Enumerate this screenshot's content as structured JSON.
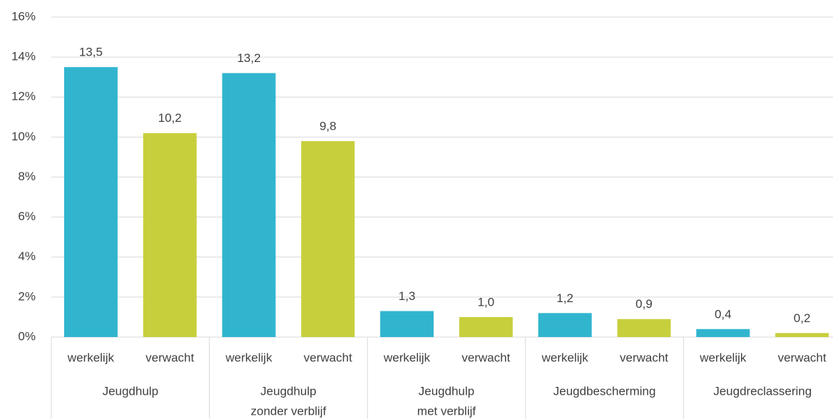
{
  "chart_data": {
    "type": "bar",
    "categories": [
      "werkelijk",
      "verwacht",
      "werkelijk",
      "verwacht",
      "werkelijk",
      "verwacht",
      "werkelijk",
      "verwacht",
      "werkelijk",
      "verwacht"
    ],
    "groups": [
      [
        "Jeugdhulp"
      ],
      [
        "Jeugdhulp",
        "zonder verblijf"
      ],
      [
        "Jeugdhulp",
        "met verblijf"
      ],
      [
        "Jeugdbescherming"
      ],
      [
        "Jeugdreclassering"
      ]
    ],
    "values": [
      13.5,
      10.2,
      13.2,
      9.8,
      1.3,
      1.0,
      1.2,
      0.9,
      0.4,
      0.2
    ],
    "value_labels": [
      "13,5",
      "10,2",
      "13,2",
      "9,8",
      "1,3",
      "1,0",
      "1,2",
      "0,9",
      "0,4",
      "0,2"
    ],
    "colors": [
      "#31b5cf",
      "#c8cf3c",
      "#31b5cf",
      "#c8cf3c",
      "#31b5cf",
      "#c8cf3c",
      "#31b5cf",
      "#c8cf3c",
      "#31b5cf",
      "#c8cf3c"
    ],
    "ylim": [
      0,
      16
    ],
    "yticks": [
      {
        "value": 0,
        "label": "0%"
      },
      {
        "value": 2,
        "label": "2%"
      },
      {
        "value": 4,
        "label": "4%"
      },
      {
        "value": 6,
        "label": "6%"
      },
      {
        "value": 8,
        "label": "8%"
      },
      {
        "value": 10,
        "label": "10%"
      },
      {
        "value": 12,
        "label": "12%"
      },
      {
        "value": 14,
        "label": "14%"
      },
      {
        "value": 16,
        "label": "16%"
      }
    ],
    "grid": true
  }
}
